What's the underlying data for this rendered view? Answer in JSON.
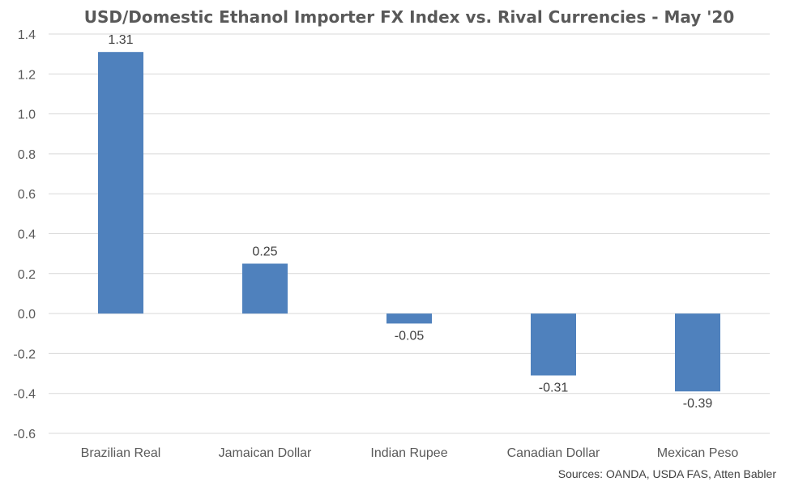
{
  "chart_data": {
    "type": "bar",
    "title": "USD/Domestic Ethanol Importer FX Index vs. Rival Currencies - May '20",
    "categories": [
      "Brazilian Real",
      "Jamaican Dollar",
      "Indian Rupee",
      "Canadian Dollar",
      "Mexican Peso"
    ],
    "values": [
      1.31,
      0.25,
      -0.05,
      -0.31,
      -0.39
    ],
    "data_labels": [
      "1.31",
      "0.25",
      "-0.05",
      "-0.31",
      "-0.39"
    ],
    "y_ticks": [
      "1.4",
      "1.2",
      "1.0",
      "0.8",
      "0.6",
      "0.4",
      "0.2",
      "0.0",
      "-0.2",
      "-0.4",
      "-0.6"
    ],
    "ylim": [
      -0.6,
      1.4
    ],
    "grid": true,
    "legend": "none",
    "bar_color": "#4f81bd",
    "source": "Sources: OANDA, USDA FAS, Atten Babler"
  }
}
